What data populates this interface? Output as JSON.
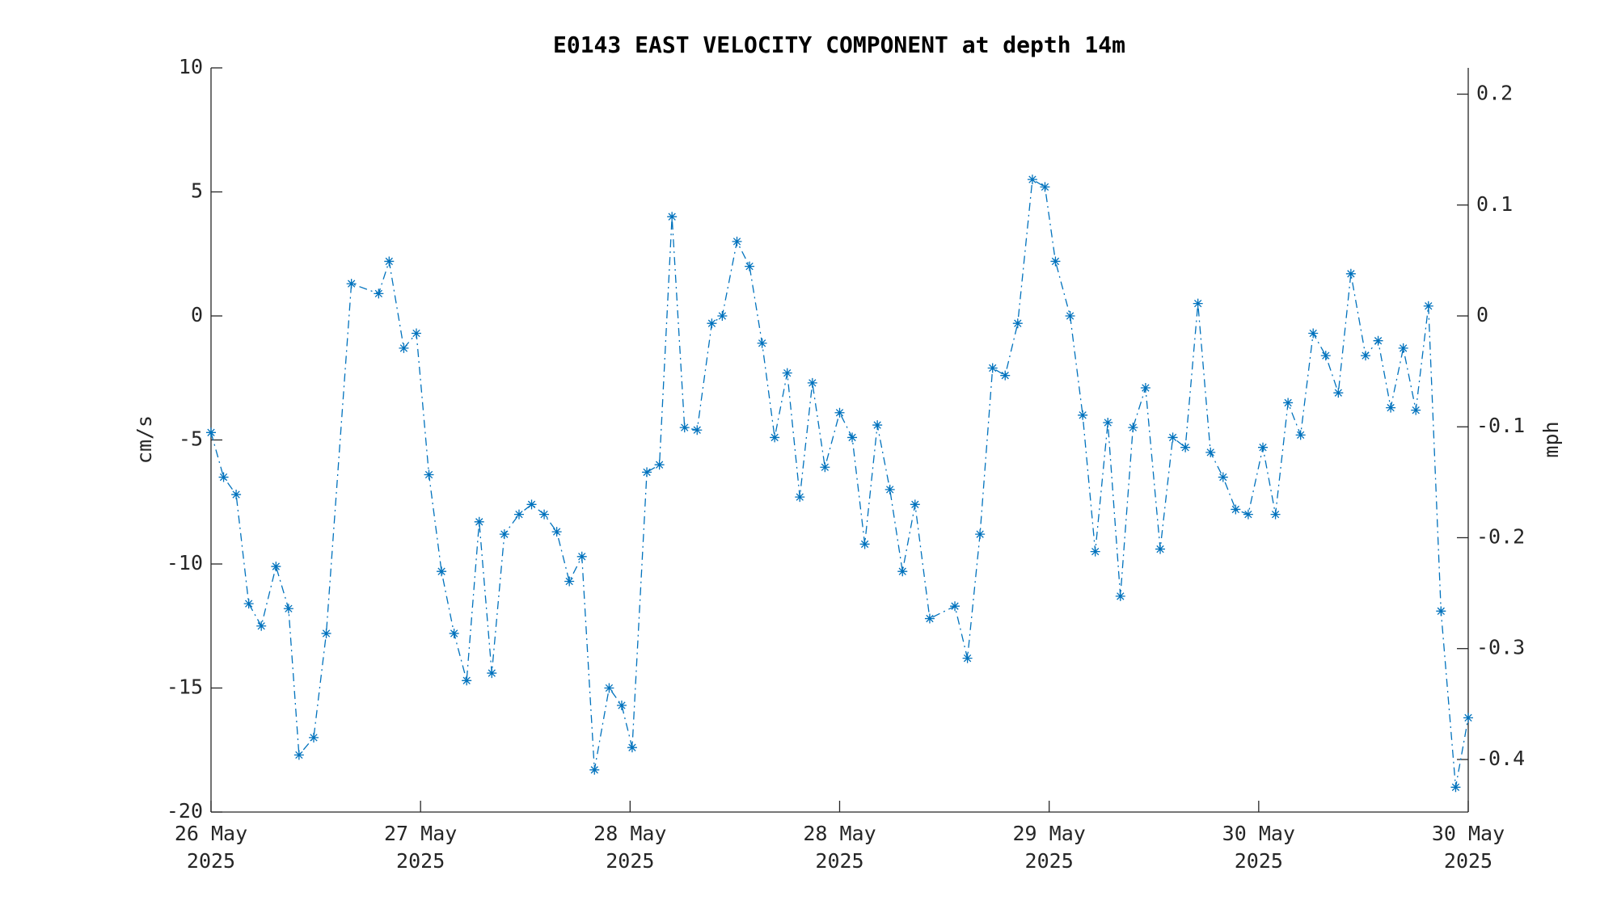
{
  "chart_data": {
    "type": "line",
    "title": "E0143 EAST VELOCITY COMPONENT at depth 14m",
    "ylabel": "cm/s",
    "y2label": "mph",
    "xlim": [
      0,
      6
    ],
    "xticks": [
      {
        "value": 0,
        "label": "26 May\n2025"
      },
      {
        "value": 1,
        "label": "27 May\n2025"
      },
      {
        "value": 2,
        "label": "28 May\n2025"
      },
      {
        "value": 3,
        "label": "28 May\n2025"
      },
      {
        "value": 4,
        "label": "29 May\n2025"
      },
      {
        "value": 5,
        "label": "30 May\n2025"
      },
      {
        "value": 6,
        "label": "30 May\n2025"
      }
    ],
    "ylim": [
      -20,
      10
    ],
    "yticks": [
      -20,
      -15,
      -10,
      -5,
      0,
      5,
      10
    ],
    "y2lim": [
      -0.4474,
      0.2237
    ],
    "y2ticks": [
      -0.4,
      -0.3,
      -0.2,
      -0.1,
      0,
      0.1,
      0.2
    ],
    "series": [
      {
        "name": "east velocity",
        "color": "#0072bd",
        "x": [
          0,
          0.06,
          0.12,
          0.18,
          0.24,
          0.31,
          0.37,
          0.42,
          0.49,
          0.55,
          0.67,
          0.8,
          0.85,
          0.92,
          0.98,
          1.04,
          1.1,
          1.16,
          1.22,
          1.28,
          1.34,
          1.4,
          1.47,
          1.53,
          1.59,
          1.65,
          1.71,
          1.77,
          1.83,
          1.9,
          1.96,
          2.01,
          2.08,
          2.14,
          2.2,
          2.26,
          2.32,
          2.39,
          2.44,
          2.51,
          2.57,
          2.63,
          2.69,
          2.75,
          2.81,
          2.87,
          2.93,
          3.0,
          3.06,
          3.12,
          3.18,
          3.24,
          3.3,
          3.36,
          3.43,
          3.55,
          3.61,
          3.67,
          3.73,
          3.79,
          3.85,
          3.92,
          3.98,
          4.03,
          4.1,
          4.16,
          4.22,
          4.28,
          4.34,
          4.4,
          4.46,
          4.53,
          4.59,
          4.65,
          4.71,
          4.77,
          4.83,
          4.89,
          4.95,
          5.02,
          5.08,
          5.14,
          5.2,
          5.26,
          5.32,
          5.38,
          5.44,
          5.51,
          5.57,
          5.63,
          5.69,
          5.75,
          5.81,
          5.87,
          5.94,
          6.0
        ],
        "values": [
          -4.7,
          -6.5,
          -7.2,
          -11.6,
          -12.5,
          -10.1,
          -11.8,
          -17.7,
          -17.0,
          -12.8,
          1.3,
          0.9,
          2.2,
          -1.3,
          -0.7,
          -6.4,
          -10.3,
          -12.8,
          -14.7,
          -8.3,
          -14.4,
          -8.8,
          -8.0,
          -7.6,
          -8.0,
          -8.7,
          -10.7,
          -9.7,
          -18.3,
          -15.0,
          -15.7,
          -17.4,
          -6.3,
          -6.0,
          4.0,
          -4.5,
          -4.6,
          -0.3,
          0.0,
          3.0,
          2.0,
          -1.1,
          -4.9,
          -2.3,
          -7.3,
          -2.7,
          -6.1,
          -3.9,
          -4.9,
          -9.2,
          -4.4,
          -7.0,
          -10.3,
          -7.6,
          -12.2,
          -11.7,
          -13.8,
          -8.8,
          -2.1,
          -2.4,
          -0.3,
          5.5,
          5.2,
          2.2,
          0.0,
          -4.0,
          -9.5,
          -4.3,
          -11.3,
          -4.5,
          -2.9,
          -9.4,
          -4.9,
          -5.3,
          0.5,
          -5.5,
          -6.5,
          -7.8,
          -8.0,
          -5.3,
          -8.0,
          -3.5,
          -4.8,
          -0.7,
          -1.6,
          -3.1,
          1.7,
          -1.6,
          -1.0,
          -3.7,
          -1.3,
          -3.8,
          0.4,
          -11.9,
          -19.0,
          -16.2
        ]
      }
    ]
  }
}
